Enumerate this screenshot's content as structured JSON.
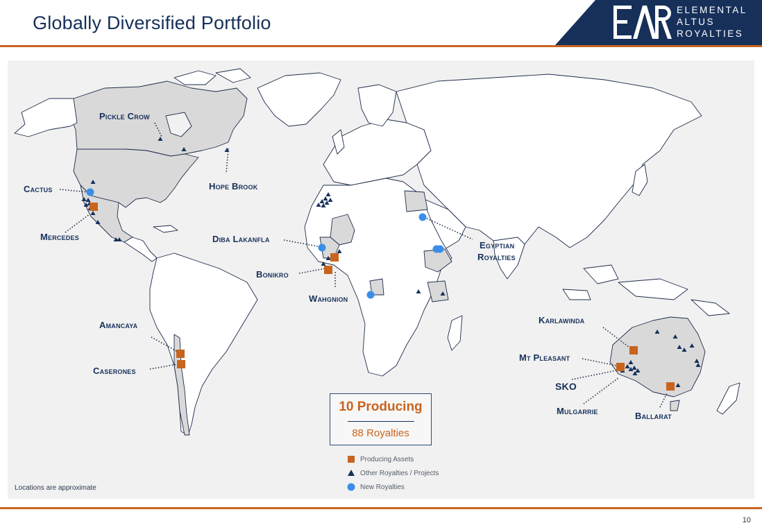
{
  "slide": {
    "title": "Globally Diversified Portfolio",
    "page_number": "10"
  },
  "logo": {
    "mark": "EAR",
    "line1": "ELEMENTAL",
    "line2": "ALTUS",
    "line3": "ROYALTIES"
  },
  "labels": {
    "pickle_crow": "Pickle Crow",
    "hope_brook": "Hope Brook",
    "cactus": "Cactus",
    "mercedes": "Mercedes",
    "diba_lakanfla": "Diba Lakanfla",
    "bonikro": "Bonikro",
    "wahgnion": "Wahgnion",
    "egyptian_royalties_1": "Egyptian",
    "egyptian_royalties_2": "Royalties",
    "amancaya": "Amancaya",
    "caserones": "Caserones",
    "karlawinda": "Karlawinda",
    "mt_pleasant": "Mt Pleasant",
    "sko": "SKO",
    "mulgarrie": "Mulgarrie",
    "ballarat": "Ballarat"
  },
  "summary": {
    "producing": "10 Producing",
    "royalties": "88 Royalties"
  },
  "legend": {
    "producing": "Producing Assets",
    "other": "Other Royalties / Projects",
    "new": "New Royalties"
  },
  "footnote": "Locations are approximate",
  "colors": {
    "navy": "#16305a",
    "orange": "#c8641e",
    "new_blue": "#3a8ee8",
    "land": "#ffffff",
    "highlight_land": "#d9d9d9",
    "panel": "#f1f1f1"
  }
}
